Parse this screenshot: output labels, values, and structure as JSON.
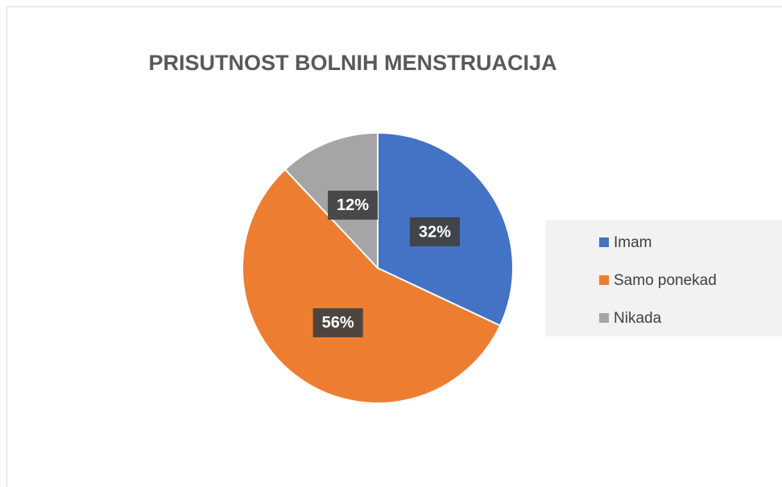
{
  "chart_data": {
    "type": "pie",
    "title": "PRISUTNOST BOLNIH MENSTRUACIJA",
    "categories": [
      "Imam",
      "Samo ponekad",
      "Nikada"
    ],
    "values": [
      32,
      56,
      12
    ],
    "value_labels": [
      "32%",
      "56%",
      "12%"
    ],
    "colors": [
      "#4472c4",
      "#ed7d31",
      "#a5a5a5"
    ],
    "legend": "right"
  }
}
